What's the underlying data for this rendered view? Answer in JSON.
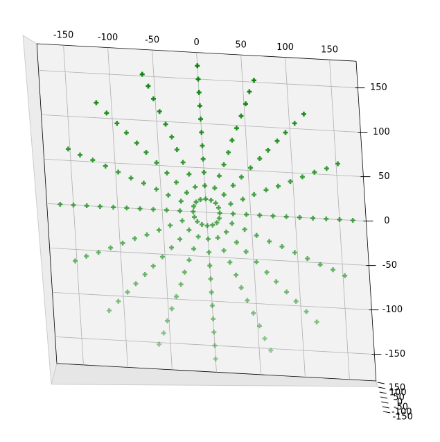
{
  "chart_data": {
    "type": "scatter3d",
    "color": "#008000",
    "grid": true,
    "xlim": [
      -180,
      180
    ],
    "ylim": [
      -180,
      180
    ],
    "xticks": [
      -150,
      -100,
      -50,
      0,
      50,
      100,
      150
    ],
    "yticks": [
      -150,
      -100,
      -50,
      0,
      50,
      100,
      150
    ],
    "zticks": [
      -150,
      -100,
      -50,
      0,
      50,
      100,
      150
    ],
    "x": [
      15,
      14,
      11,
      6,
      0,
      -6,
      -11,
      -14,
      -15,
      -14,
      -11,
      -6,
      0,
      6,
      11,
      14,
      30,
      45,
      60,
      75,
      90,
      105,
      120,
      135,
      150,
      165,
      28,
      42,
      55,
      69,
      83,
      97,
      111,
      125,
      139,
      152,
      21,
      32,
      42,
      53,
      64,
      74,
      85,
      95,
      106,
      117,
      11,
      17,
      23,
      29,
      34,
      40,
      46,
      52,
      57,
      63,
      0,
      0,
      0,
      0,
      0,
      0,
      0,
      0,
      0,
      0,
      -11,
      -17,
      -23,
      -29,
      -34,
      -40,
      -46,
      -52,
      -57,
      -63,
      -21,
      -32,
      -42,
      -53,
      -64,
      -74,
      -85,
      -95,
      -106,
      -117,
      -28,
      -42,
      -55,
      -69,
      -83,
      -97,
      -111,
      -125,
      -139,
      -152,
      -30,
      -45,
      -60,
      -75,
      -90,
      -105,
      -120,
      -135,
      -150,
      -165,
      -28,
      -42,
      -55,
      -69,
      -83,
      -97,
      -111,
      -125,
      -139,
      -152,
      -21,
      -32,
      -42,
      -53,
      -64,
      -74,
      -85,
      -95,
      -106,
      -117,
      -11,
      -17,
      -23,
      -29,
      -34,
      -40,
      -46,
      -52,
      -57,
      -63,
      0,
      0,
      0,
      0,
      0,
      0,
      0,
      0,
      0,
      0,
      11,
      17,
      23,
      29,
      34,
      40,
      46,
      52,
      57,
      63,
      21,
      32,
      42,
      53,
      64,
      74,
      85,
      95,
      106,
      117,
      28,
      42,
      55,
      69,
      83,
      97,
      111,
      125,
      139,
      152
    ],
    "y": [
      0,
      6,
      11,
      14,
      15,
      14,
      11,
      6,
      0,
      -6,
      -11,
      -14,
      -15,
      -14,
      -11,
      -6,
      0,
      0,
      0,
      0,
      0,
      0,
      0,
      0,
      0,
      0,
      11,
      17,
      23,
      29,
      34,
      40,
      46,
      52,
      57,
      63,
      21,
      32,
      42,
      53,
      64,
      74,
      85,
      95,
      106,
      117,
      28,
      42,
      55,
      69,
      83,
      97,
      111,
      125,
      139,
      152,
      30,
      45,
      60,
      75,
      90,
      105,
      120,
      135,
      150,
      165,
      28,
      42,
      55,
      69,
      83,
      97,
      111,
      125,
      139,
      152,
      21,
      32,
      42,
      53,
      64,
      74,
      85,
      95,
      106,
      117,
      11,
      17,
      23,
      29,
      34,
      40,
      46,
      52,
      57,
      63,
      0,
      0,
      0,
      0,
      0,
      0,
      0,
      0,
      0,
      0,
      -11,
      -17,
      -23,
      -29,
      -34,
      -40,
      -46,
      -52,
      -57,
      -63,
      -21,
      -32,
      -42,
      -53,
      -64,
      -74,
      -85,
      -95,
      -106,
      -117,
      -28,
      -42,
      -55,
      -69,
      -83,
      -97,
      -111,
      -125,
      -139,
      -152,
      -30,
      -45,
      -60,
      -75,
      -90,
      -105,
      -120,
      -135,
      -150,
      -165,
      -28,
      -42,
      -55,
      -69,
      -83,
      -97,
      -111,
      -125,
      -139,
      -152,
      -21,
      -32,
      -42,
      -53,
      -64,
      -74,
      -85,
      -95,
      -106,
      -117,
      -11,
      -17,
      -23,
      -29,
      -34,
      -40,
      -46,
      -52,
      -57,
      -63
    ]
  }
}
